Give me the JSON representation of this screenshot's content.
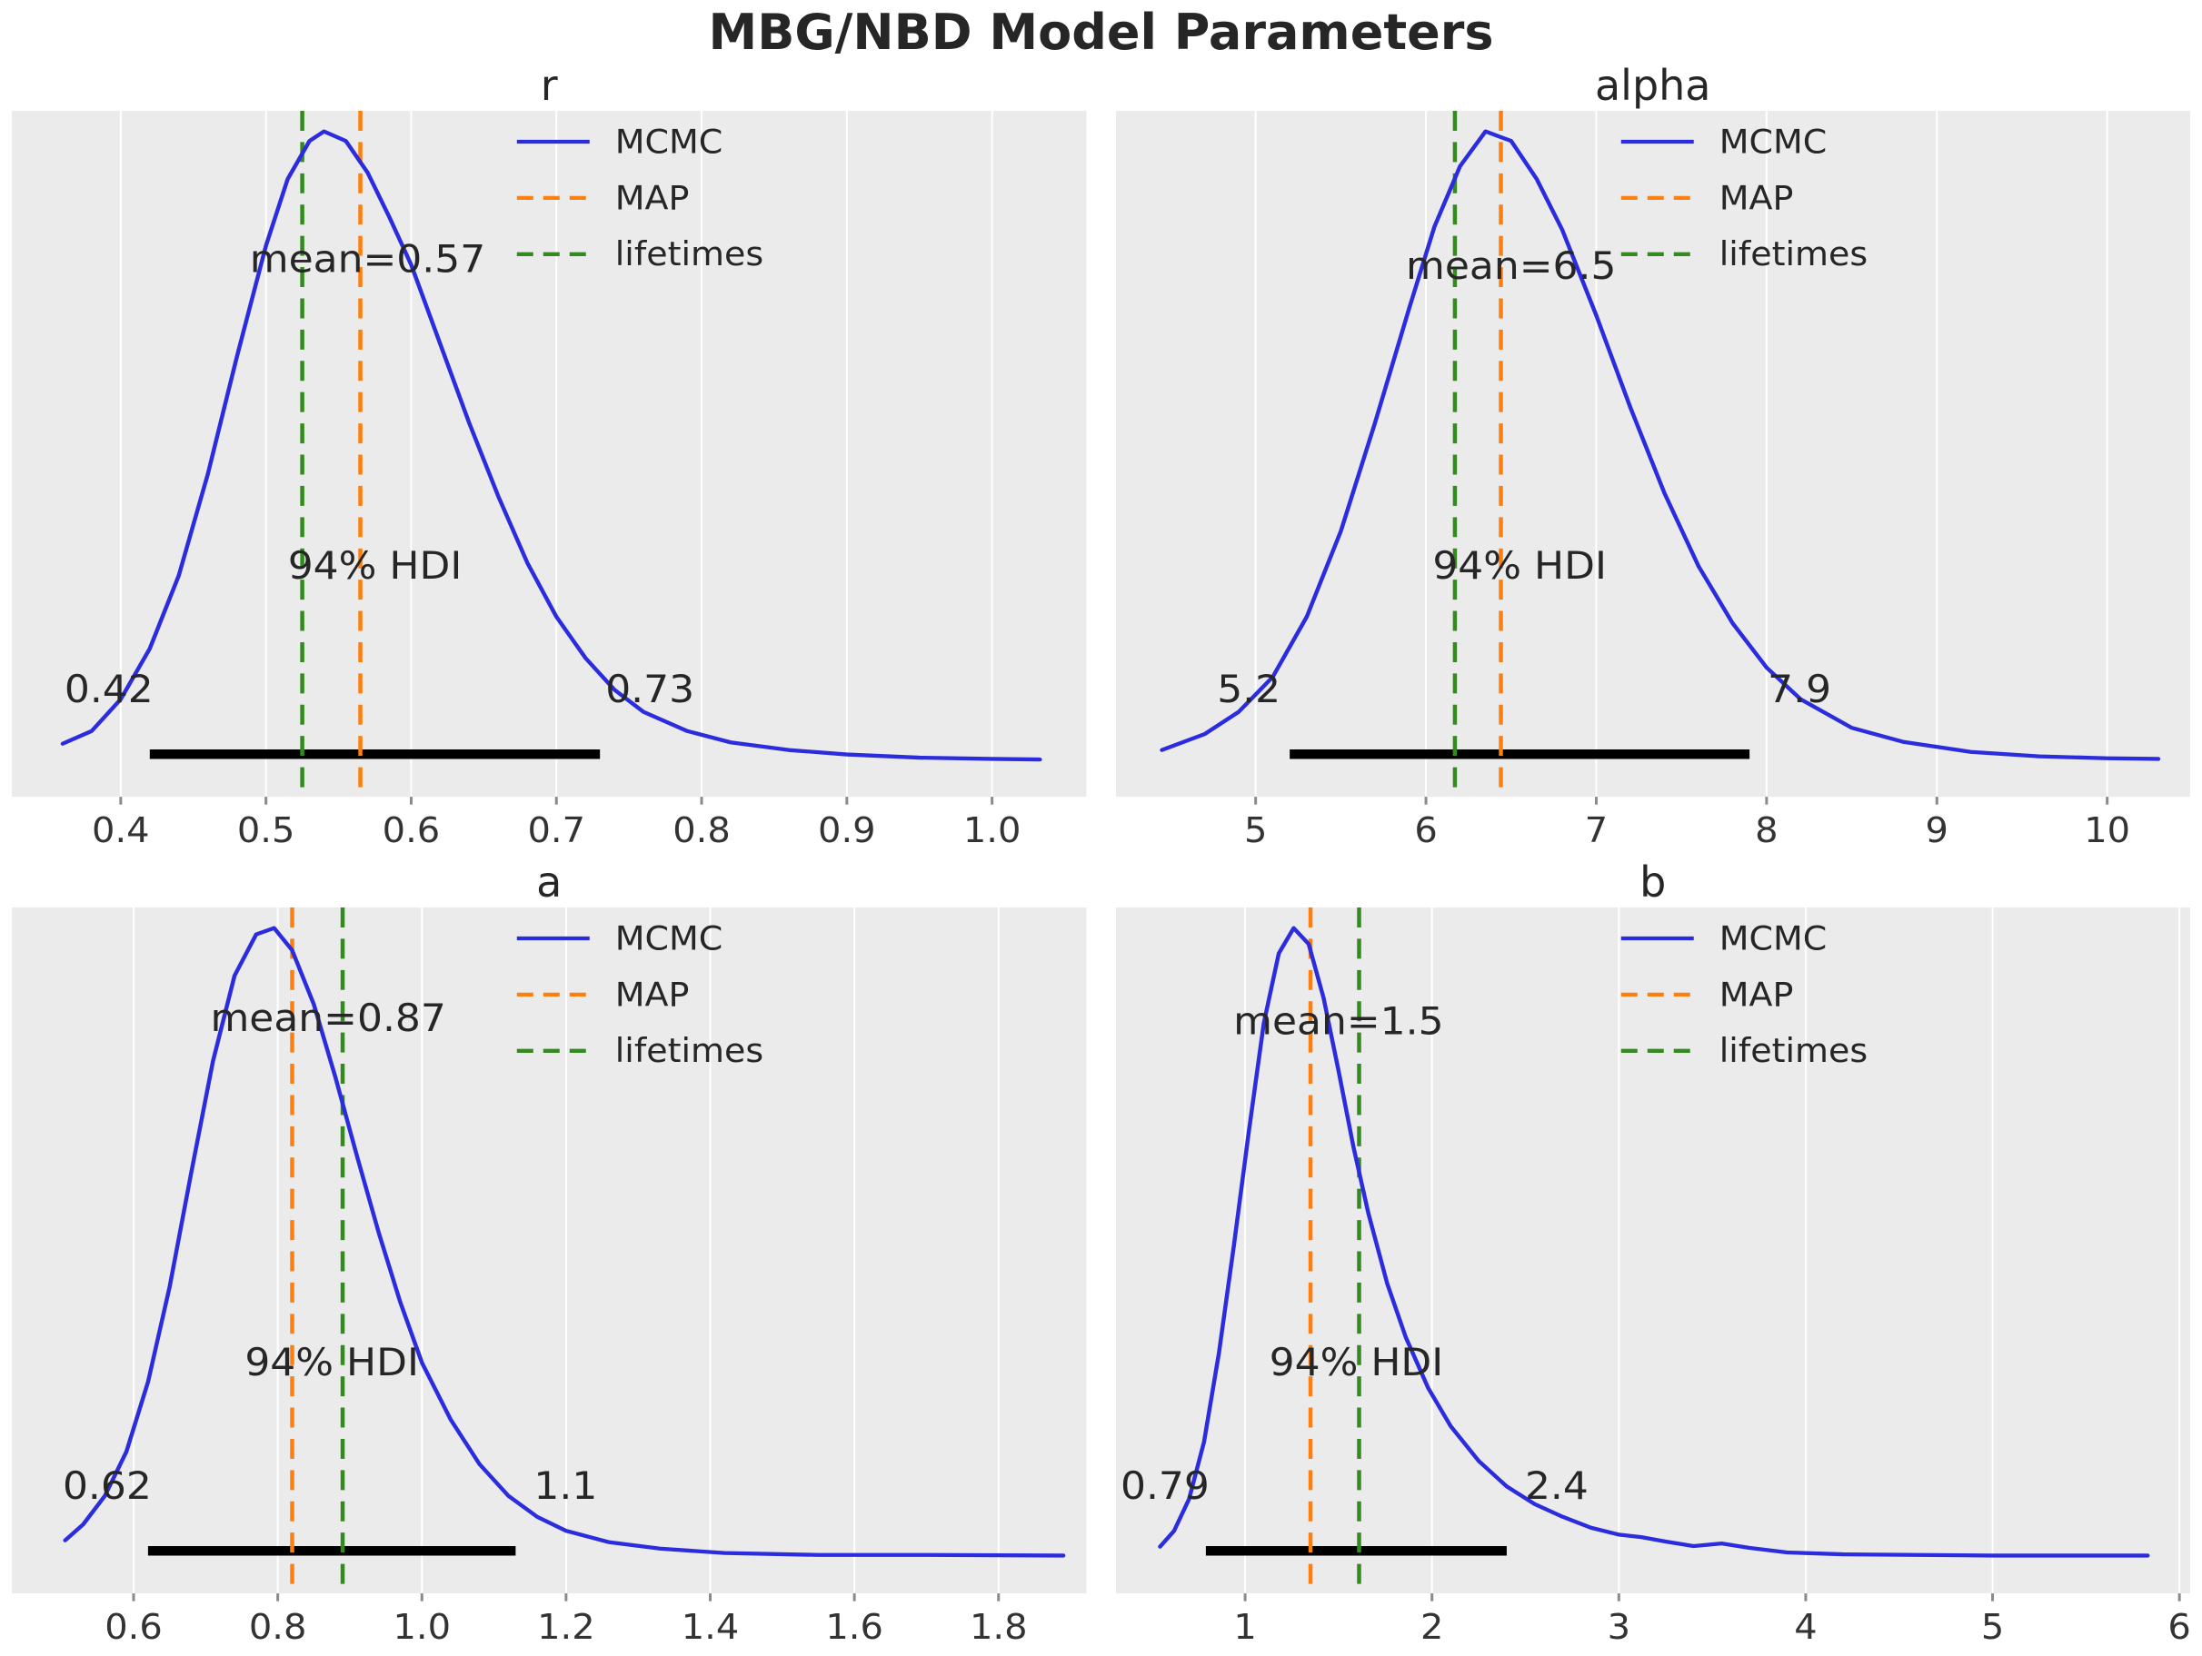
{
  "page_title": "MBG/NBD Model Parameters",
  "colors": {
    "mcmc": "#2c2cdf",
    "map": "#ff7f0e",
    "lifetimes": "#338a1f",
    "hdi_bar": "#000000",
    "plot_bg": "#ebebeb",
    "grid": "#ffffff",
    "text": "#262626",
    "tick_label": "#333333",
    "tick_mark": "#8a8a8a"
  },
  "legend": {
    "items": [
      {
        "label": "MCMC",
        "dash": false,
        "color_key": "mcmc"
      },
      {
        "label": "MAP",
        "dash": true,
        "color_key": "map"
      },
      {
        "label": "lifetimes",
        "dash": true,
        "color_key": "lifetimes"
      }
    ]
  },
  "chart_data": [
    {
      "type": "line",
      "title": "r",
      "mean": 0.57,
      "mean_label": "mean=0.57",
      "mean_y_frac": 0.22,
      "hdi": [
        0.42,
        0.73
      ],
      "hdi_labels": [
        "0.42",
        "0.73"
      ],
      "hdi_title": "94% HDI",
      "map_line": 0.565,
      "lifetimes_line": 0.525,
      "xlim": [
        0.325,
        1.065
      ],
      "xticks": [
        0.4,
        0.5,
        0.6,
        0.7,
        0.8,
        0.9,
        1.0
      ],
      "xtick_labels": [
        "0.4",
        "0.5",
        "0.6",
        "0.7",
        "0.8",
        "0.9",
        "1.0"
      ],
      "kde": {
        "x": [
          0.36,
          0.38,
          0.4,
          0.42,
          0.44,
          0.46,
          0.48,
          0.5,
          0.515,
          0.53,
          0.54,
          0.555,
          0.57,
          0.585,
          0.6,
          0.62,
          0.64,
          0.66,
          0.68,
          0.7,
          0.72,
          0.74,
          0.76,
          0.79,
          0.82,
          0.86,
          0.9,
          0.95,
          1.0,
          1.033
        ],
        "density": [
          0.035,
          0.055,
          0.105,
          0.185,
          0.3,
          0.46,
          0.645,
          0.82,
          0.925,
          0.985,
          1.0,
          0.985,
          0.935,
          0.865,
          0.79,
          0.665,
          0.54,
          0.425,
          0.32,
          0.235,
          0.17,
          0.12,
          0.085,
          0.055,
          0.037,
          0.025,
          0.018,
          0.013,
          0.011,
          0.01
        ]
      }
    },
    {
      "type": "line",
      "title": "alpha",
      "mean": 6.5,
      "mean_label": "mean=6.5",
      "mean_y_frac": 0.23,
      "hdi": [
        5.2,
        7.9
      ],
      "hdi_labels": [
        "5.2",
        "7.9"
      ],
      "hdi_title": "94% HDI",
      "map_line": 6.44,
      "lifetimes_line": 6.17,
      "xlim": [
        4.18,
        10.49
      ],
      "xticks": [
        5,
        6,
        7,
        8,
        9,
        10
      ],
      "xtick_labels": [
        "5",
        "6",
        "7",
        "8",
        "9",
        "10"
      ],
      "kde": {
        "x": [
          4.45,
          4.7,
          4.9,
          5.1,
          5.3,
          5.5,
          5.7,
          5.9,
          6.05,
          6.2,
          6.35,
          6.5,
          6.65,
          6.8,
          7.0,
          7.2,
          7.4,
          7.6,
          7.8,
          8.0,
          8.2,
          8.5,
          8.8,
          9.2,
          9.6,
          10.0,
          10.3
        ],
        "density": [
          0.025,
          0.05,
          0.085,
          0.14,
          0.235,
          0.37,
          0.54,
          0.72,
          0.85,
          0.945,
          1.0,
          0.985,
          0.925,
          0.845,
          0.71,
          0.565,
          0.43,
          0.315,
          0.225,
          0.155,
          0.105,
          0.06,
          0.038,
          0.022,
          0.015,
          0.012,
          0.011
        ]
      }
    },
    {
      "type": "line",
      "title": "a",
      "mean": 0.87,
      "mean_label": "mean=0.87",
      "mean_y_frac": 0.165,
      "hdi": [
        0.62,
        1.13
      ],
      "hdi_labels": [
        "0.62",
        "1.1"
      ],
      "hdi_title": "94% HDI",
      "map_line": 0.82,
      "lifetimes_line": 0.89,
      "xlim": [
        0.431,
        1.922
      ],
      "xticks": [
        0.6,
        0.8,
        1.0,
        1.2,
        1.4,
        1.6,
        1.8
      ],
      "xtick_labels": [
        "0.6",
        "0.8",
        "1.0",
        "1.2",
        "1.4",
        "1.6",
        "1.8"
      ],
      "kde": {
        "x": [
          0.505,
          0.53,
          0.56,
          0.59,
          0.62,
          0.65,
          0.68,
          0.71,
          0.74,
          0.77,
          0.795,
          0.82,
          0.85,
          0.88,
          0.91,
          0.94,
          0.97,
          1.0,
          1.04,
          1.08,
          1.12,
          1.16,
          1.2,
          1.26,
          1.33,
          1.42,
          1.55,
          1.7,
          1.89
        ],
        "density": [
          0.035,
          0.06,
          0.105,
          0.175,
          0.285,
          0.435,
          0.615,
          0.79,
          0.925,
          0.99,
          1.0,
          0.965,
          0.88,
          0.765,
          0.64,
          0.52,
          0.41,
          0.315,
          0.225,
          0.155,
          0.105,
          0.072,
          0.05,
          0.032,
          0.022,
          0.015,
          0.012,
          0.012,
          0.011
        ]
      }
    },
    {
      "type": "line",
      "title": "b",
      "mean": 1.5,
      "mean_label": "mean=1.5",
      "mean_y_frac": 0.17,
      "hdi": [
        0.79,
        2.4
      ],
      "hdi_labels": [
        "0.79",
        "2.4"
      ],
      "hdi_title": "94% HDI",
      "map_line": 1.35,
      "lifetimes_line": 1.61,
      "xlim": [
        0.309,
        6.06
      ],
      "xticks": [
        1,
        2,
        3,
        4,
        5,
        6
      ],
      "xtick_labels": [
        "1",
        "2",
        "3",
        "4",
        "5",
        "6"
      ],
      "kde": {
        "x": [
          0.545,
          0.62,
          0.7,
          0.78,
          0.86,
          0.94,
          1.02,
          1.1,
          1.18,
          1.26,
          1.34,
          1.42,
          1.5,
          1.58,
          1.66,
          1.76,
          1.86,
          1.98,
          2.1,
          2.25,
          2.4,
          2.55,
          2.7,
          2.85,
          3.0,
          3.12,
          3.25,
          3.4,
          3.55,
          3.7,
          3.9,
          4.2,
          4.6,
          5.0,
          5.5,
          5.83
        ],
        "density": [
          0.025,
          0.05,
          0.1,
          0.19,
          0.33,
          0.5,
          0.68,
          0.85,
          0.96,
          1.0,
          0.975,
          0.89,
          0.775,
          0.655,
          0.55,
          0.44,
          0.355,
          0.275,
          0.215,
          0.16,
          0.12,
          0.092,
          0.072,
          0.055,
          0.044,
          0.04,
          0.033,
          0.026,
          0.03,
          0.023,
          0.016,
          0.013,
          0.012,
          0.011,
          0.011,
          0.011
        ]
      }
    }
  ]
}
